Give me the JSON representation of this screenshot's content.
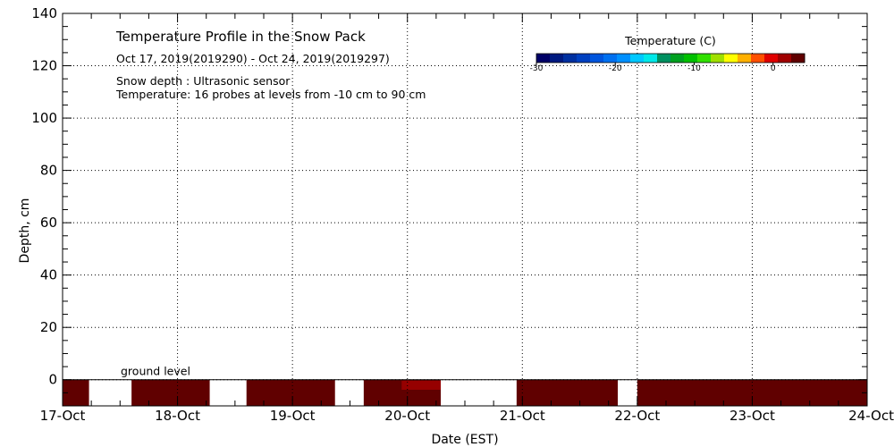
{
  "chart_data": {
    "type": "heatmap",
    "title": "Temperature Profile in the Snow Pack",
    "subtitle": "Oct 17, 2019(2019290) - Oct 24, 2019(2019297)",
    "notes": [
      "Snow depth : Ultrasonic sensor",
      "Temperature: 16 probes at levels from -10 cm to 90 cm"
    ],
    "xlabel": "Date (EST)",
    "ylabel": "Depth, cm",
    "x_ticks": [
      "17-Oct",
      "18-Oct",
      "19-Oct",
      "20-Oct",
      "21-Oct",
      "22-Oct",
      "23-Oct",
      "24-Oct"
    ],
    "y_ticks": [
      0,
      20,
      40,
      60,
      80,
      100,
      120,
      140
    ],
    "xlim": [
      0,
      7
    ],
    "ylim": [
      -10,
      140
    ],
    "grid": true,
    "ground_level_label": "ground level",
    "colorbar": {
      "title": "Temperature (C)",
      "ticks": [
        -30,
        -20,
        -10,
        0
      ],
      "range": [
        -30,
        4
      ],
      "colors": [
        "#000066",
        "#001a80",
        "#0030a0",
        "#0040c0",
        "#0055dd",
        "#0070f0",
        "#0090ff",
        "#00c8ff",
        "#00e8e8",
        "#009060",
        "#00a020",
        "#00c000",
        "#30e000",
        "#a0e000",
        "#ffff00",
        "#ffb000",
        "#ff5000",
        "#e00000",
        "#a00000",
        "#600000"
      ]
    },
    "series": [
      {
        "depth_range": [
          -10,
          0
        ],
        "segments": [
          {
            "start": 0.0,
            "end": 0.23,
            "temp": 3
          },
          {
            "start": 0.6,
            "end": 1.28,
            "temp": 3
          },
          {
            "start": 1.6,
            "end": 2.37,
            "temp": 3
          },
          {
            "start": 2.62,
            "end": 3.29,
            "temp": 3
          },
          {
            "start": 3.95,
            "end": 4.83,
            "temp": 3
          },
          {
            "start": 5.0,
            "end": 7.0,
            "temp": 3
          }
        ],
        "highlight": {
          "start": 2.95,
          "end": 3.29,
          "temp": 1
        }
      }
    ]
  }
}
